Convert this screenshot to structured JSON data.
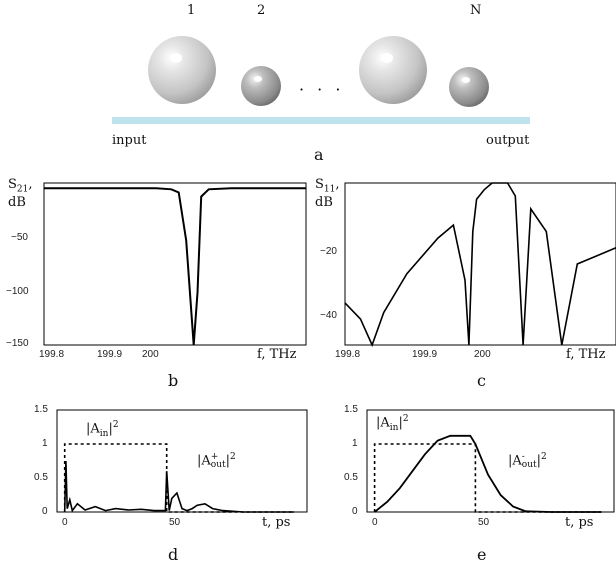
{
  "panel_a": {
    "resonator_labels": [
      "1",
      "2",
      "N"
    ],
    "ellipsis": "· · ·",
    "input_label": "input",
    "output_label": "output",
    "panel_letter": "a",
    "waveguide_color": "#bfe3ec"
  },
  "panel_b": {
    "ylabel_main": "S",
    "ylabel_sub": "21",
    "ylabel_unit": ",",
    "ylabel_db": "dB",
    "xlabel": "f, THz",
    "xticks": [
      "199.8",
      "199.9",
      "200"
    ],
    "yticks": [
      "−50",
      "−100",
      "−150"
    ],
    "panel_letter": "b"
  },
  "panel_c": {
    "ylabel_main": "S",
    "ylabel_sub": "11",
    "ylabel_unit": ",",
    "ylabel_db": "dB",
    "xlabel": "f, THz",
    "xticks": [
      "199.8",
      "199.9",
      "200"
    ],
    "yticks": [
      "−20",
      "−40"
    ],
    "panel_letter": "c"
  },
  "panel_d": {
    "yticks": [
      "1.5",
      "1",
      "0.5",
      "0"
    ],
    "xticks": [
      "0",
      "50"
    ],
    "xlabel": "t, ps",
    "in_label_main": "|A",
    "in_label_sub": "in",
    "in_label_end": "|",
    "in_label_pow": "2",
    "out_label_main": "|A",
    "out_label_sub": "out",
    "out_label_sup": "+",
    "out_label_end": "|",
    "out_label_pow": "2",
    "panel_letter": "d"
  },
  "panel_e": {
    "yticks": [
      "1.5",
      "1",
      "0.5",
      "0"
    ],
    "xticks": [
      "0",
      "50"
    ],
    "xlabel": "t, ps",
    "in_label_main": "|A",
    "in_label_sub": "in",
    "in_label_end": "|",
    "in_label_pow": "2",
    "out_label_main": "|A",
    "out_label_sub": "out",
    "out_label_sup": "-",
    "out_label_end": "|",
    "out_label_pow": "2",
    "panel_letter": "e"
  },
  "chart_data": [
    {
      "type": "line",
      "id": "b",
      "x": [
        199.8,
        199.85,
        199.9,
        199.95,
        199.97,
        199.98,
        199.99,
        200.0,
        200.005,
        200.01,
        200.02,
        200.05,
        200.1,
        200.15
      ],
      "y": [
        0,
        0,
        0,
        0,
        -1,
        -4,
        -50,
        -150,
        -100,
        -8,
        -1,
        0,
        0,
        0
      ],
      "xlim": [
        199.8,
        200.15
      ],
      "ylim": [
        -150,
        5
      ]
    },
    {
      "type": "line",
      "id": "c",
      "x": [
        199.8,
        199.82,
        199.835,
        199.85,
        199.88,
        199.92,
        199.94,
        199.955,
        199.96,
        199.965,
        199.97,
        199.98,
        199.99,
        200.0,
        200.01,
        200.02,
        200.03,
        200.04,
        200.06,
        200.08,
        200.1,
        200.15
      ],
      "y": [
        -37,
        -42,
        -50,
        -40,
        -28,
        -17,
        -13,
        -30,
        -50,
        -15,
        -5,
        -2,
        0,
        0,
        0,
        -4,
        -50,
        -8,
        -15,
        -50,
        -25,
        -20
      ],
      "xlim": [
        199.8,
        200.15
      ],
      "ylim": [
        -50,
        0
      ]
    },
    {
      "type": "line",
      "id": "d",
      "series": [
        {
          "x": [
            0,
            0,
            40,
            40,
            90
          ],
          "y": [
            0,
            1,
            1,
            0,
            0
          ]
        },
        {
          "x": [
            0,
            0.5,
            1,
            2,
            3,
            5,
            8,
            12,
            16,
            20,
            25,
            30,
            35,
            39.5,
            40,
            41,
            42,
            44,
            46,
            48,
            50,
            52,
            55,
            58,
            62,
            66,
            70,
            80,
            90
          ],
          "y": [
            0,
            0.75,
            0.05,
            0.18,
            0.02,
            0.12,
            0.03,
            0.08,
            0.02,
            0.05,
            0.03,
            0.04,
            0.02,
            0.02,
            0.6,
            0.02,
            0.2,
            0.28,
            0.05,
            0.02,
            0.05,
            0.1,
            0.12,
            0.05,
            0.02,
            0.01,
            0.0,
            0.0,
            0.0
          ]
        }
      ],
      "xlim": [
        -3,
        95
      ],
      "ylim": [
        0,
        1.5
      ]
    },
    {
      "type": "line",
      "id": "e",
      "series": [
        {
          "x": [
            0,
            0,
            40,
            40,
            90
          ],
          "y": [
            0,
            1,
            1,
            0,
            0
          ]
        },
        {
          "x": [
            0,
            5,
            10,
            15,
            20,
            25,
            30,
            35,
            38,
            40,
            45,
            50,
            55,
            60,
            70,
            90
          ],
          "y": [
            0,
            0.15,
            0.35,
            0.6,
            0.85,
            1.05,
            1.12,
            1.12,
            1.12,
            1.0,
            0.55,
            0.25,
            0.08,
            0.01,
            0.0,
            0.0
          ]
        }
      ],
      "xlim": [
        -3,
        95
      ],
      "ylim": [
        0,
        1.5
      ]
    }
  ]
}
